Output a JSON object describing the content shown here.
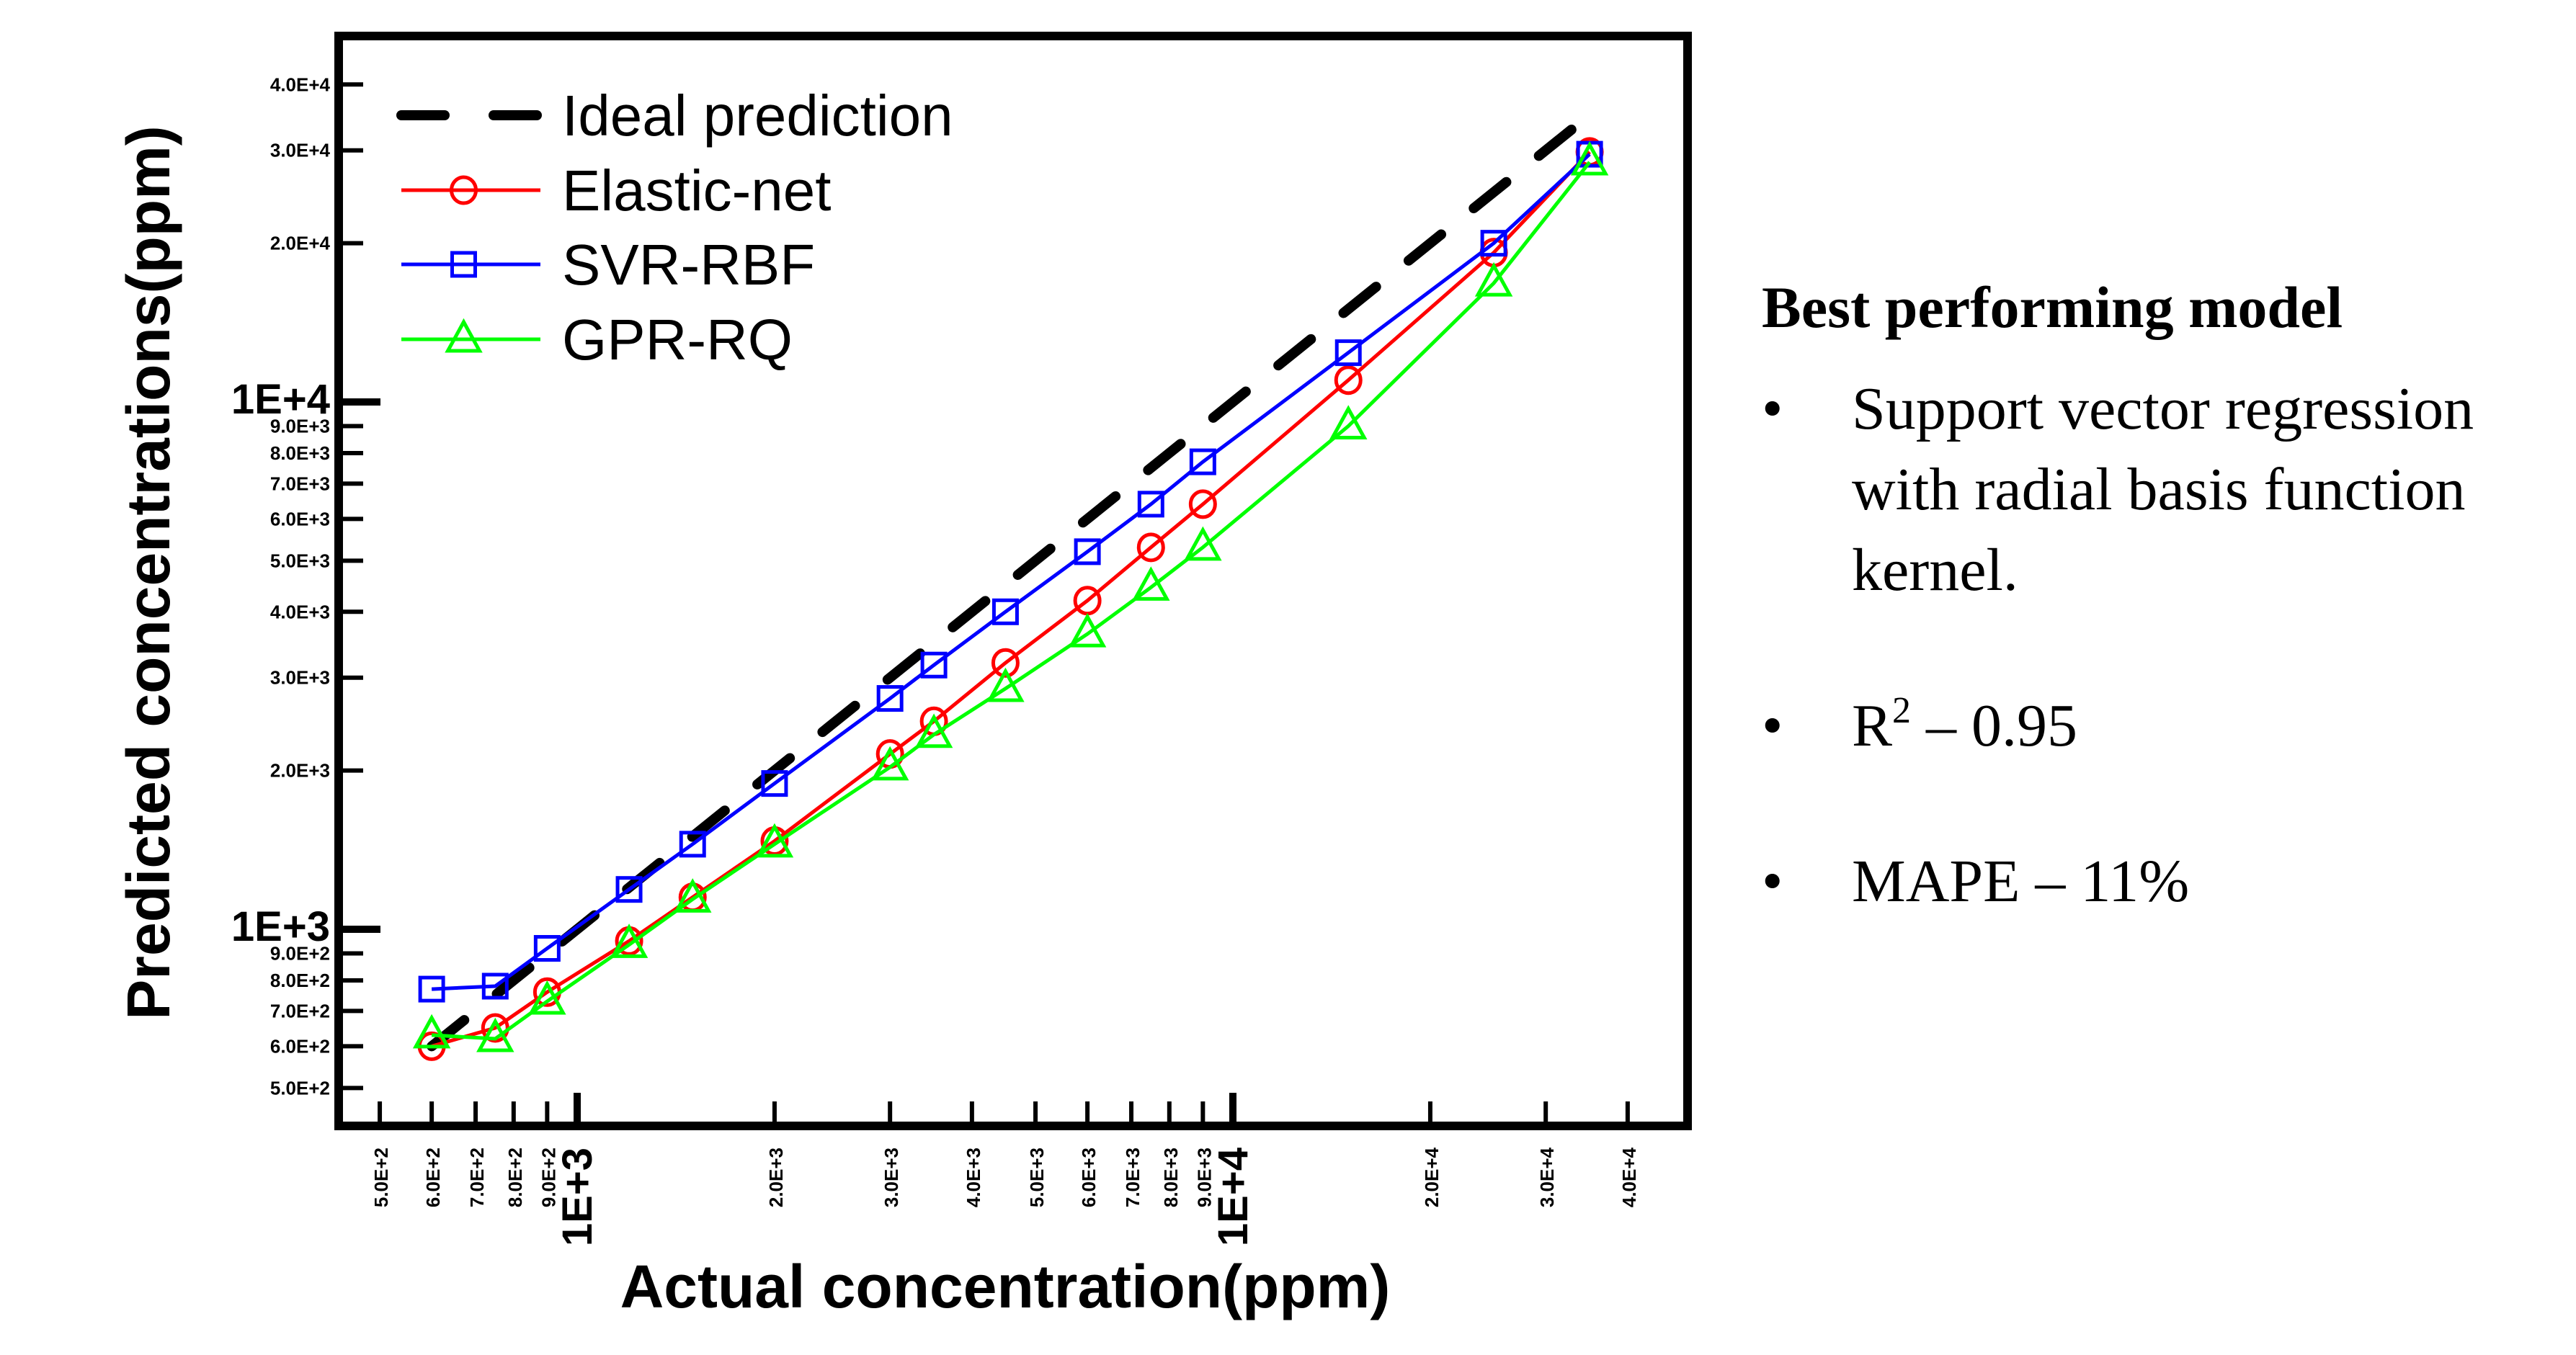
{
  "chart_data": {
    "type": "line",
    "x_scale": "log",
    "y_scale": "log",
    "xlabel": "Actual concentration(ppm)",
    "ylabel": "Predicted concentrations(ppm)",
    "xlim": [
      460,
      46000
    ],
    "ylim": [
      460,
      46000
    ],
    "grid": false,
    "legend_position": "top-left",
    "x_ticks": [
      {
        "value": 500,
        "label": "5.0E+2",
        "major": false
      },
      {
        "value": 600,
        "label": "6.0E+2",
        "major": false
      },
      {
        "value": 700,
        "label": "7.0E+2",
        "major": false
      },
      {
        "value": 800,
        "label": "8.0E+2",
        "major": false
      },
      {
        "value": 900,
        "label": "9.0E+2",
        "major": false
      },
      {
        "value": 1000,
        "label": "1E+3",
        "major": true
      },
      {
        "value": 2000,
        "label": "2.0E+3",
        "major": false
      },
      {
        "value": 3000,
        "label": "3.0E+3",
        "major": false
      },
      {
        "value": 4000,
        "label": "4.0E+3",
        "major": false
      },
      {
        "value": 5000,
        "label": "5.0E+3",
        "major": false
      },
      {
        "value": 6000,
        "label": "6.0E+3",
        "major": false
      },
      {
        "value": 7000,
        "label": "7.0E+3",
        "major": false
      },
      {
        "value": 8000,
        "label": "8.0E+3",
        "major": false
      },
      {
        "value": 9000,
        "label": "9.0E+3",
        "major": false
      },
      {
        "value": 10000,
        "label": "1E+4",
        "major": true
      },
      {
        "value": 20000,
        "label": "2.0E+4",
        "major": false
      },
      {
        "value": 30000,
        "label": "3.0E+4",
        "major": false
      },
      {
        "value": 40000,
        "label": "4.0E+4",
        "major": false
      }
    ],
    "y_ticks": [
      {
        "value": 500,
        "label": "5.0E+2",
        "major": false
      },
      {
        "value": 600,
        "label": "6.0E+2",
        "major": false
      },
      {
        "value": 700,
        "label": "7.0E+2",
        "major": false
      },
      {
        "value": 800,
        "label": "8.0E+2",
        "major": false
      },
      {
        "value": 900,
        "label": "9.0E+2",
        "major": false
      },
      {
        "value": 1000,
        "label": "1E+3",
        "major": true
      },
      {
        "value": 2000,
        "label": "2.0E+3",
        "major": false
      },
      {
        "value": 3000,
        "label": "3.0E+3",
        "major": false
      },
      {
        "value": 4000,
        "label": "4.0E+3",
        "major": false
      },
      {
        "value": 5000,
        "label": "5.0E+3",
        "major": false
      },
      {
        "value": 6000,
        "label": "6.0E+3",
        "major": false
      },
      {
        "value": 7000,
        "label": "7.0E+3",
        "major": false
      },
      {
        "value": 8000,
        "label": "8.0E+3",
        "major": false
      },
      {
        "value": 9000,
        "label": "9.0E+3",
        "major": false
      },
      {
        "value": 10000,
        "label": "1E+4",
        "major": true
      },
      {
        "value": 20000,
        "label": "2.0E+4",
        "major": false
      },
      {
        "value": 30000,
        "label": "3.0E+4",
        "major": false
      },
      {
        "value": 40000,
        "label": "4.0E+4",
        "major": false
      }
    ],
    "x": [
      600,
      750,
      900,
      1200,
      1500,
      2000,
      3000,
      3500,
      4500,
      6000,
      7500,
      9000,
      15000,
      25000,
      35000
    ],
    "series": [
      {
        "name": "Ideal prediction",
        "color": "#000000",
        "style": "dashed",
        "marker": "none",
        "x": [
          600,
          35500
        ],
        "values": [
          600,
          35500
        ]
      },
      {
        "name": "Elastic-net",
        "color": "#ff0000",
        "style": "solid",
        "marker": "circle",
        "values": [
          600,
          650,
          760,
          950,
          1150,
          1470,
          2150,
          2480,
          3200,
          4200,
          5300,
          6400,
          11000,
          19200,
          29800
        ]
      },
      {
        "name": "SVR-RBF",
        "color": "#0000ff",
        "style": "solid",
        "marker": "square",
        "values": [
          770,
          780,
          920,
          1190,
          1450,
          1890,
          2740,
          3170,
          4000,
          5200,
          6400,
          7700,
          12400,
          20000,
          29500
        ]
      },
      {
        "name": "GPR-RQ",
        "color": "#00ff00",
        "style": "solid",
        "marker": "triangle",
        "values": [
          630,
          620,
          730,
          935,
          1140,
          1450,
          2030,
          2340,
          2860,
          3630,
          4450,
          5300,
          9000,
          16800,
          28500
        ]
      }
    ]
  },
  "panel": {
    "heading": "Best performing model",
    "bullet_char": "•",
    "items": [
      {
        "text": "Support vector regression with radial basis function kernel."
      },
      {
        "prefix": "R",
        "superscript": "2",
        "text": " – 0.95"
      },
      {
        "text": "MAPE – 11%"
      }
    ]
  }
}
